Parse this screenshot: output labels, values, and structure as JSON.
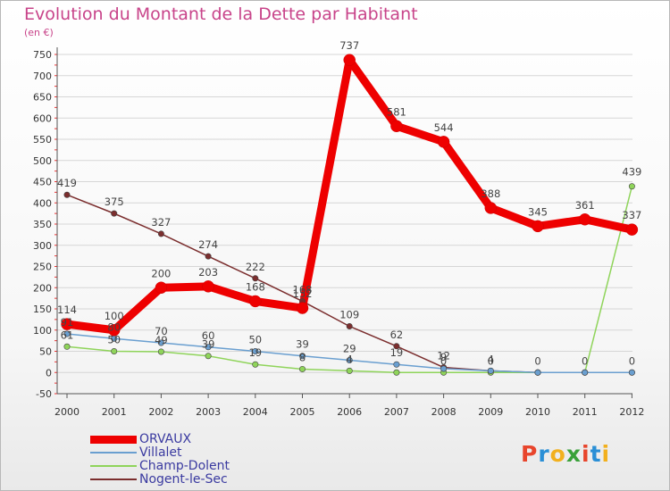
{
  "header": {
    "title": "Evolution du Montant de la Dette par Habitant",
    "subtitle": "(en €)"
  },
  "logo": {
    "text": "Proxiti",
    "colors": [
      "#e8452c",
      "#2a8fd6",
      "#f2b01e",
      "#3aa13a",
      "#e8452c",
      "#2a8fd6",
      "#f2b01e"
    ]
  },
  "chart_data": {
    "type": "line",
    "title": "Evolution du Montant de la Dette par Habitant",
    "ylabel": "(en €)",
    "xlabel": "",
    "ylim": [
      -50,
      750
    ],
    "yticks": [
      -50,
      0,
      50,
      100,
      150,
      200,
      250,
      300,
      350,
      400,
      450,
      500,
      550,
      600,
      650,
      700,
      750
    ],
    "grid": "horizontal",
    "legend_position": "bottom-left",
    "x": [
      "2000",
      "2001",
      "2002",
      "2003",
      "2004",
      "2005",
      "2006",
      "2007",
      "2008",
      "2009",
      "2010",
      "2011",
      "2012"
    ],
    "series": [
      {
        "name": "ORVAUX",
        "color": "#ee0000",
        "width": 9,
        "values": [
          114,
          100,
          200,
          203,
          168,
          152,
          737,
          581,
          544,
          388,
          345,
          361,
          337
        ]
      },
      {
        "name": "Villalet",
        "color": "#6a9fd0",
        "width": 1.5,
        "values": [
          91,
          80,
          70,
          60,
          50,
          39,
          29,
          19,
          9,
          4,
          0,
          0,
          0
        ]
      },
      {
        "name": "Champ-Dolent",
        "color": "#8fd45a",
        "width": 1.5,
        "values": [
          61,
          50,
          49,
          39,
          19,
          8,
          4,
          0,
          0,
          0,
          0,
          0,
          439
        ]
      },
      {
        "name": "Nogent-le-Sec",
        "color": "#7b2e2e",
        "width": 1.5,
        "values": [
          419,
          375,
          327,
          274,
          222,
          168,
          109,
          62,
          12,
          4,
          0,
          0,
          0
        ]
      }
    ],
    "data_labels": [
      {
        "series": "Nogent-le-Sec",
        "x": "2000",
        "text": "419"
      },
      {
        "series": "Nogent-le-Sec",
        "x": "2001",
        "text": "375"
      },
      {
        "series": "Nogent-le-Sec",
        "x": "2002",
        "text": "327"
      },
      {
        "series": "Nogent-le-Sec",
        "x": "2003",
        "text": "274"
      },
      {
        "series": "Nogent-le-Sec",
        "x": "2004",
        "text": "222"
      },
      {
        "series": "Nogent-le-Sec",
        "x": "2005",
        "text": "168"
      },
      {
        "series": "Nogent-le-Sec",
        "x": "2006",
        "text": "109"
      },
      {
        "series": "Nogent-le-Sec",
        "x": "2007",
        "text": "62"
      },
      {
        "series": "Nogent-le-Sec",
        "x": "2008",
        "text": "12"
      },
      {
        "series": "ORVAUX",
        "x": "2000",
        "text": "114"
      },
      {
        "series": "ORVAUX",
        "x": "2001",
        "text": "100"
      },
      {
        "series": "ORVAUX",
        "x": "2002",
        "text": "200"
      },
      {
        "series": "ORVAUX",
        "x": "2003",
        "text": "203"
      },
      {
        "series": "ORVAUX",
        "x": "2004",
        "text": "168"
      },
      {
        "series": "ORVAUX",
        "x": "2005",
        "text": "152"
      },
      {
        "series": "ORVAUX",
        "x": "2006",
        "text": "737"
      },
      {
        "series": "ORVAUX",
        "x": "2007",
        "text": "581"
      },
      {
        "series": "ORVAUX",
        "x": "2008",
        "text": "544"
      },
      {
        "series": "ORVAUX",
        "x": "2009",
        "text": "388"
      },
      {
        "series": "ORVAUX",
        "x": "2010",
        "text": "345"
      },
      {
        "series": "ORVAUX",
        "x": "2011",
        "text": "361"
      },
      {
        "series": "ORVAUX",
        "x": "2012",
        "text": "337"
      },
      {
        "series": "Villalet",
        "x": "2000",
        "text": "91"
      },
      {
        "series": "Villalet",
        "x": "2001",
        "text": "80"
      },
      {
        "series": "Villalet",
        "x": "2002",
        "text": "70"
      },
      {
        "series": "Villalet",
        "x": "2003",
        "text": "60"
      },
      {
        "series": "Villalet",
        "x": "2004",
        "text": "50"
      },
      {
        "series": "Villalet",
        "x": "2005",
        "text": "39"
      },
      {
        "series": "Villalet",
        "x": "2006",
        "text": "29"
      },
      {
        "series": "Villalet",
        "x": "2007",
        "text": "19"
      },
      {
        "series": "Villalet",
        "x": "2008",
        "text": "9"
      },
      {
        "series": "Villalet",
        "x": "2009",
        "text": "4"
      },
      {
        "series": "Villalet",
        "x": "2010",
        "text": "0"
      },
      {
        "series": "Villalet",
        "x": "2011",
        "text": "0"
      },
      {
        "series": "Villalet",
        "x": "2012",
        "text": "0"
      },
      {
        "series": "Champ-Dolent",
        "x": "2000",
        "text": "61"
      },
      {
        "series": "Champ-Dolent",
        "x": "2001",
        "text": "50"
      },
      {
        "series": "Champ-Dolent",
        "x": "2002",
        "text": "49"
      },
      {
        "series": "Champ-Dolent",
        "x": "2003",
        "text": "39"
      },
      {
        "series": "Champ-Dolent",
        "x": "2004",
        "text": "19"
      },
      {
        "series": "Champ-Dolent",
        "x": "2005",
        "text": "8"
      },
      {
        "series": "Champ-Dolent",
        "x": "2006",
        "text": "4"
      },
      {
        "series": "Champ-Dolent",
        "x": "2008",
        "text": "0"
      },
      {
        "series": "Champ-Dolent",
        "x": "2009",
        "text": "0"
      },
      {
        "series": "Champ-Dolent",
        "x": "2012",
        "text": "439"
      }
    ]
  }
}
